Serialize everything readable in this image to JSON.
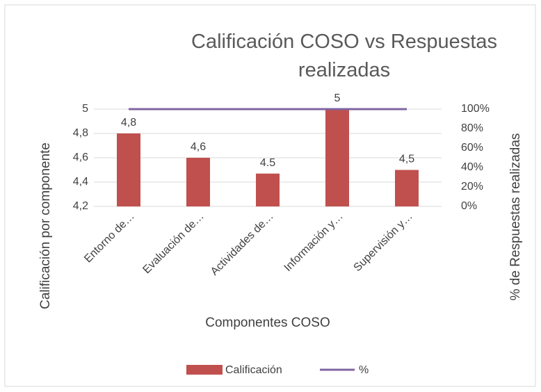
{
  "chart_data": {
    "type": "bar",
    "title": "Calificación COSO vs  Respuestas realizadas",
    "x_label": "Componentes COSO",
    "y_label": "Calificación  por componente",
    "y2_label": "% de Respuestas realizadas",
    "categories": [
      "Entorno de…",
      "Evaluación de…",
      "Actividades de…",
      "Información y…",
      "Supervisión y…"
    ],
    "series": [
      {
        "name": "Calificación",
        "type": "bar",
        "color": "#c0504d",
        "values": [
          4.8,
          4.6,
          4.47,
          5,
          4.5
        ],
        "value_labels": [
          "4,8",
          "4,6",
          "4.5",
          "5",
          "4,5"
        ]
      },
      {
        "name": "%",
        "type": "line",
        "color": "#8064a2",
        "axis": "y2",
        "values": [
          100,
          100,
          100,
          100,
          100
        ]
      }
    ],
    "ylim": [
      4.2,
      5
    ],
    "yticks": [
      {
        "value": 4.2,
        "label": "4,2"
      },
      {
        "value": 4.4,
        "label": "4,4"
      },
      {
        "value": 4.6,
        "label": "4,6"
      },
      {
        "value": 4.8,
        "label": "4,8"
      },
      5
    ],
    "y2lim": [
      0,
      100
    ],
    "yticks2_note_free": null,
    "y2ticks": [
      {
        "value": 0,
        "label": "0%"
      },
      {
        "value": 20,
        "label": "20%"
      },
      {
        "value": 40,
        "label": "40%"
      },
      {
        "value": 60,
        "label": "60%"
      },
      {
        "value": 80,
        "label": "80%"
      },
      {
        "value": 100,
        "label": "100%"
      }
    ],
    "grid": true,
    "legend": "bottom"
  }
}
